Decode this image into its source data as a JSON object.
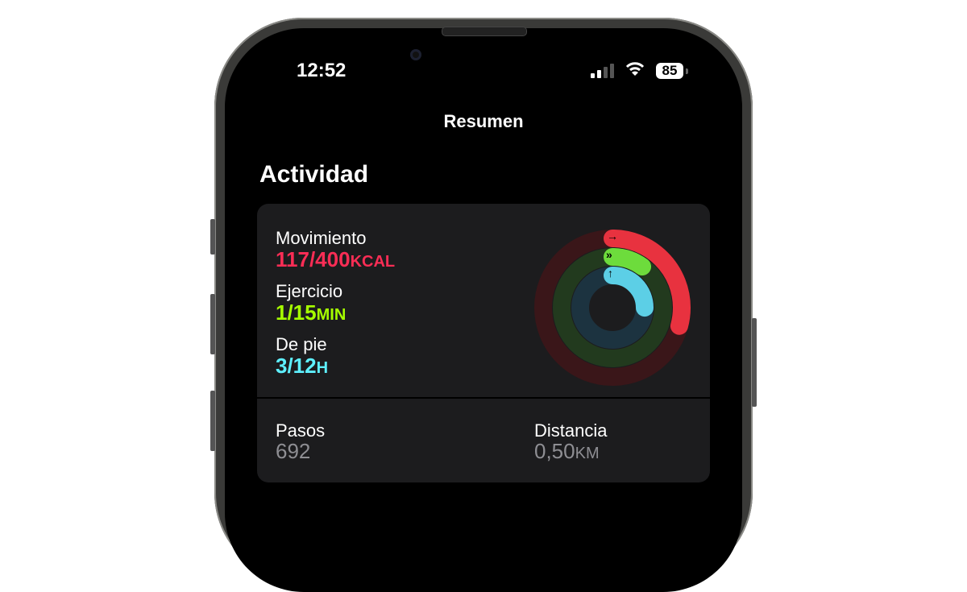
{
  "status_bar": {
    "time": "12:52",
    "battery": "85",
    "signal_bars": 2,
    "icons": [
      "cellular-signal-icon",
      "wifi-icon",
      "battery-icon"
    ]
  },
  "nav": {
    "title": "Resumen"
  },
  "section": {
    "title": "Actividad"
  },
  "activity": {
    "move": {
      "label": "Movimiento",
      "value": "117/400",
      "unit": "KCAL",
      "current": 117,
      "goal": 400,
      "color": "#fa2d55"
    },
    "exercise": {
      "label": "Ejercicio",
      "value": "1/15",
      "unit": "MIN",
      "current": 1,
      "goal": 15,
      "color": "#a6ff00"
    },
    "stand": {
      "label": "De pie",
      "value": "3/12",
      "unit": "H",
      "current": 3,
      "goal": 12,
      "color": "#00f0ff"
    }
  },
  "stats": {
    "steps": {
      "label": "Pasos",
      "value": "692"
    },
    "distance": {
      "label": "Distancia",
      "value": "0,50",
      "unit": "KM"
    }
  }
}
